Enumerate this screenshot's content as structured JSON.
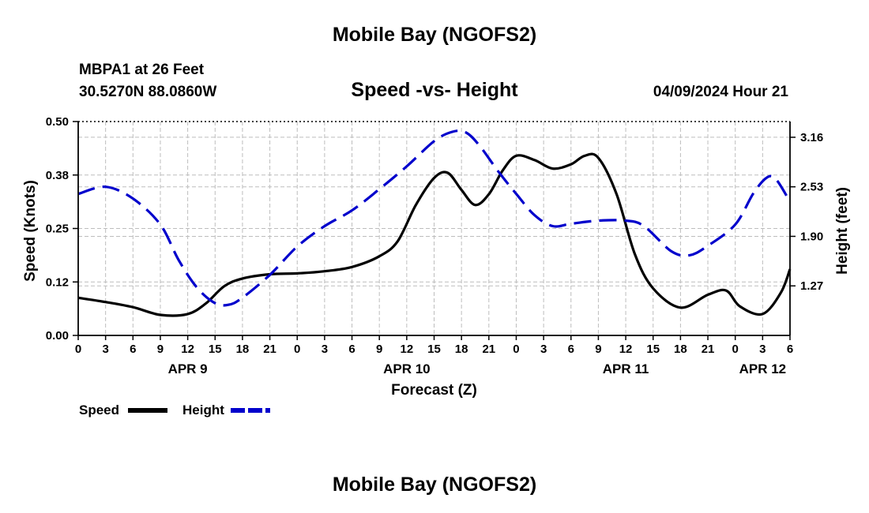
{
  "header": {
    "title": "Mobile Bay (NGOFS2)",
    "station": "MBPA1 at 26 Feet",
    "coords": "30.5270N  88.0860W",
    "subtitle": "Speed -vs- Height",
    "datetime": "04/09/2024 Hour 21",
    "footer_title": "Mobile Bay (NGOFS2)"
  },
  "chart_data": {
    "type": "line",
    "xlabel": "Forecast (Z)",
    "x_tick_labels": [
      "0",
      "3",
      "6",
      "9",
      "12",
      "15",
      "18",
      "21",
      "0",
      "3",
      "6",
      "9",
      "12",
      "15",
      "18",
      "21",
      "0",
      "3",
      "6",
      "9",
      "12",
      "15",
      "18",
      "21",
      "0",
      "3",
      "6"
    ],
    "day_labels": [
      {
        "label": "APR 9",
        "hour": 12
      },
      {
        "label": "APR 10",
        "hour": 36
      },
      {
        "label": "APR 11",
        "hour": 60
      },
      {
        "label": "APR 12",
        "hour": 75
      }
    ],
    "xlim": [
      0,
      78
    ],
    "left_axis": {
      "label": "Speed (Knots)",
      "ylim": [
        0,
        0.5
      ],
      "ticks": [
        "0.00",
        "0.12",
        "0.25",
        "0.38",
        "0.50"
      ],
      "tick_values": [
        0,
        0.125,
        0.25,
        0.375,
        0.5
      ]
    },
    "right_axis": {
      "label": "Height (feet)",
      "ylim": [
        0.64,
        3.36
      ],
      "ticks": [
        "1.27",
        "1.90",
        "2.53",
        "3.16"
      ],
      "tick_values": [
        1.27,
        1.9,
        2.53,
        3.16
      ]
    },
    "grid": true,
    "legend": {
      "placement": "bottom-left",
      "entries": [
        "Speed",
        "Height"
      ]
    },
    "series": [
      {
        "name": "Speed",
        "axis": "left",
        "color": "#000000",
        "style": "solid",
        "x": [
          0,
          3,
          6,
          9,
          12,
          14,
          16,
          18,
          21,
          24,
          27,
          30,
          33,
          35,
          37,
          39,
          40.5,
          42,
          43.5,
          45,
          46.5,
          48,
          50,
          52,
          54,
          55.5,
          57,
          59,
          61,
          63,
          66,
          69,
          71,
          72.5,
          75,
          77,
          78
        ],
        "values": [
          0.088,
          0.078,
          0.066,
          0.048,
          0.05,
          0.075,
          0.115,
          0.133,
          0.143,
          0.145,
          0.15,
          0.16,
          0.185,
          0.22,
          0.305,
          0.368,
          0.38,
          0.34,
          0.305,
          0.33,
          0.385,
          0.42,
          0.41,
          0.39,
          0.4,
          0.42,
          0.415,
          0.33,
          0.19,
          0.11,
          0.065,
          0.095,
          0.105,
          0.068,
          0.05,
          0.1,
          0.155
        ]
      },
      {
        "name": "Height",
        "axis": "right",
        "color": "#0000cc",
        "style": "dashed",
        "x": [
          0,
          3,
          6,
          9,
          11,
          13,
          15,
          16.5,
          18,
          21,
          24,
          27,
          30,
          33,
          36,
          39,
          41,
          42.5,
          44,
          46,
          48,
          50,
          52,
          54,
          57,
          60,
          62,
          65,
          67,
          69,
          72,
          74,
          75.5,
          76.5,
          78
        ],
        "values": [
          2.44,
          2.53,
          2.38,
          2.05,
          1.6,
          1.25,
          1.05,
          1.03,
          1.12,
          1.41,
          1.77,
          2.03,
          2.23,
          2.5,
          2.79,
          3.11,
          3.23,
          3.22,
          3.05,
          2.73,
          2.44,
          2.17,
          2.03,
          2.06,
          2.1,
          2.1,
          2.03,
          1.71,
          1.66,
          1.78,
          2.05,
          2.45,
          2.65,
          2.62,
          2.34
        ]
      }
    ]
  }
}
